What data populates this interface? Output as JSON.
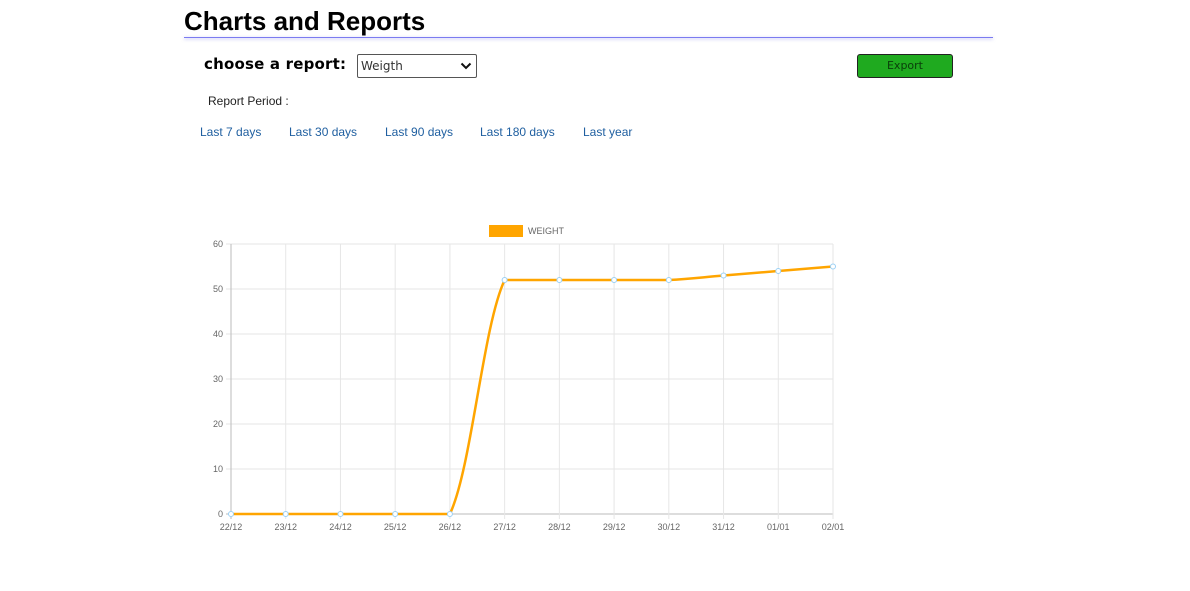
{
  "header": {
    "title": "Charts and Reports"
  },
  "controls": {
    "report_label": "choose a report:",
    "report_select": {
      "selected": "Weigth"
    },
    "export_label": "Export",
    "period_label": "Report Period :",
    "period_links": [
      "Last 7 days",
      "Last 30 days",
      "Last 90 days",
      "Last 180 days",
      "Last year"
    ]
  },
  "colors": {
    "series": "#ffa500",
    "point_border": "#9ad0f5",
    "export_button": "#1faa1f",
    "link": "#1f5fa0"
  },
  "chart_data": {
    "type": "line",
    "categories": [
      "22/12",
      "23/12",
      "24/12",
      "25/12",
      "26/12",
      "27/12",
      "28/12",
      "29/12",
      "30/12",
      "31/12",
      "01/01",
      "02/01"
    ],
    "series": [
      {
        "name": "WEIGHT",
        "values": [
          0,
          0,
          0,
          0,
          0,
          52,
          52,
          52,
          52,
          53,
          54,
          55
        ]
      }
    ],
    "ylim": [
      0,
      60
    ],
    "yticks": [
      0,
      10,
      20,
      30,
      40,
      50,
      60
    ],
    "grid": true,
    "legend": "top"
  }
}
